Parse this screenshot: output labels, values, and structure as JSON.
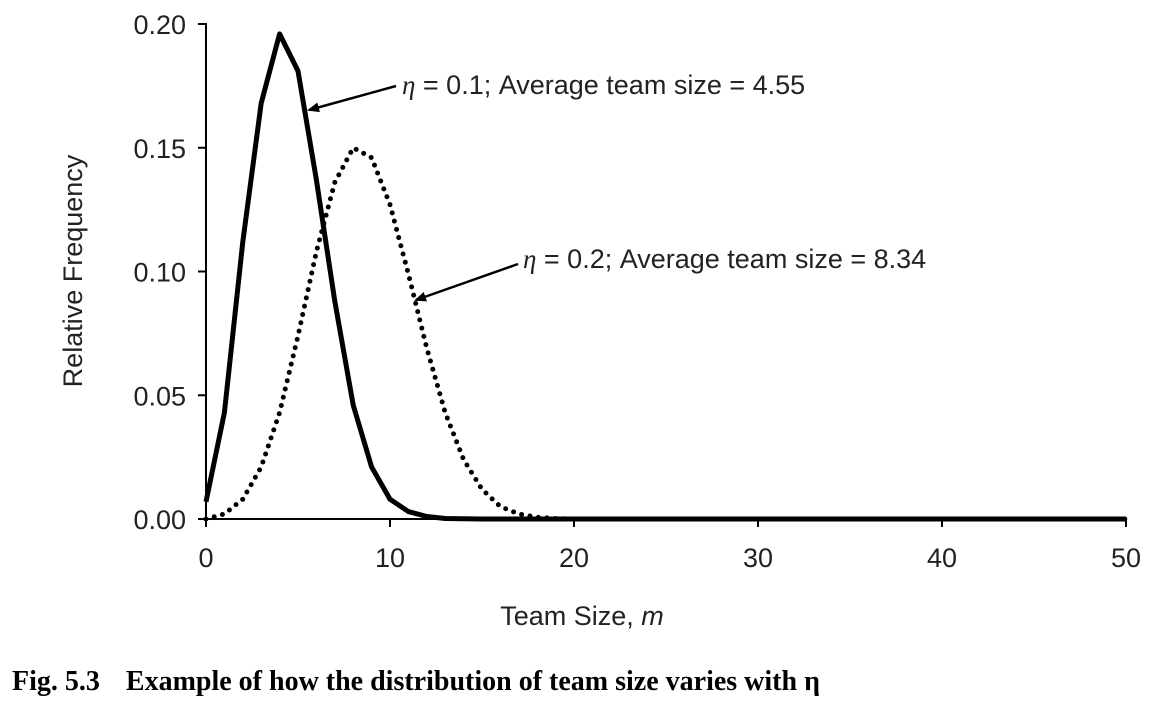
{
  "chart_data": {
    "type": "line",
    "xlabel": "Team Size, ",
    "xlabel_var": "m",
    "ylabel": "Relative Frequency",
    "xlim": [
      0,
      50
    ],
    "ylim": [
      0,
      0.2
    ],
    "x_ticks": [
      "0",
      "10",
      "20",
      "30",
      "40",
      "50"
    ],
    "y_ticks": [
      "0.00",
      "0.05",
      "0.10",
      "0.15",
      "0.20"
    ],
    "grid": false,
    "series": [
      {
        "name": "η = 0.1; Average team size = 4.55",
        "style": "solid",
        "x": [
          0,
          1,
          2,
          3,
          4,
          5,
          6,
          7,
          8,
          9,
          10,
          11,
          12,
          13,
          14,
          15,
          20,
          30,
          40,
          50
        ],
        "y": [
          0.007,
          0.043,
          0.112,
          0.168,
          0.196,
          0.181,
          0.137,
          0.088,
          0.046,
          0.021,
          0.008,
          0.003,
          0.001,
          0.0002,
          0.0001,
          0,
          0,
          0,
          0,
          0
        ]
      },
      {
        "name": "η = 0.2; Average team size = 8.34",
        "style": "dotted",
        "x": [
          0,
          1,
          2,
          3,
          4,
          5,
          6,
          7,
          8,
          9,
          10,
          11,
          12,
          13,
          14,
          15,
          16,
          17,
          18,
          19,
          20,
          30,
          40,
          50
        ],
        "y": [
          0.0,
          0.002,
          0.008,
          0.021,
          0.043,
          0.074,
          0.108,
          0.136,
          0.15,
          0.146,
          0.127,
          0.099,
          0.069,
          0.043,
          0.024,
          0.012,
          0.005,
          0.002,
          0.0007,
          0.0002,
          0,
          0,
          0,
          0
        ]
      }
    ],
    "annotations": [
      {
        "eta": "η",
        "text": " = 0.1; Average team size = 4.55"
      },
      {
        "eta": "η",
        "text": " = 0.2; Average team size = 8.34"
      }
    ]
  },
  "caption": {
    "figure_number": "Fig. 5.3",
    "text": "Example of how the distribution of team size varies with η"
  }
}
